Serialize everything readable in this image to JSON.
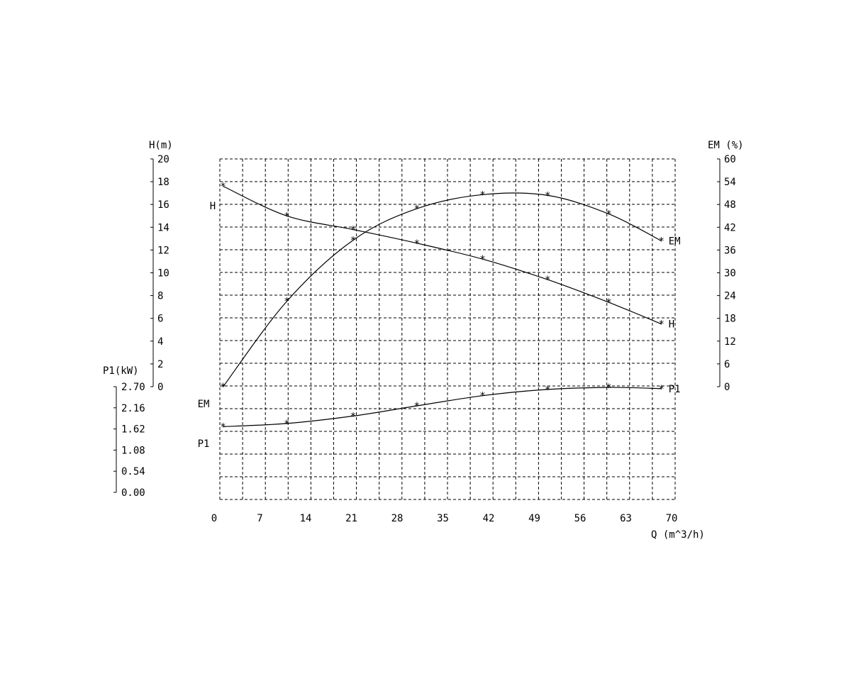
{
  "chart_data": {
    "type": "line",
    "x": {
      "label": "Q (m^3/h)",
      "range": [
        0,
        70
      ],
      "ticks": [
        "0",
        "7",
        "14",
        "21",
        "28",
        "35",
        "42",
        "49",
        "56",
        "63",
        "70"
      ]
    },
    "axes": {
      "H": {
        "label": "H(m)",
        "range": [
          0,
          20
        ],
        "ticks": [
          "0",
          "2",
          "4",
          "6",
          "8",
          "10",
          "12",
          "14",
          "16",
          "18",
          "20"
        ]
      },
      "EM": {
        "label": "EM (%)",
        "range": [
          0,
          60
        ],
        "ticks": [
          "0",
          "6",
          "12",
          "18",
          "24",
          "30",
          "36",
          "42",
          "48",
          "54",
          "60"
        ]
      },
      "P1": {
        "label": "P1(kW)",
        "range": [
          0,
          2.7
        ],
        "ticks": [
          "0.00",
          "0.54",
          "1.08",
          "1.62",
          "2.16",
          "2.70"
        ]
      }
    },
    "grid": true,
    "series": [
      {
        "name": "H",
        "axis": "H",
        "end_label": "H",
        "start_label": "H",
        "points": [
          [
            0.5,
            17.6
          ],
          [
            10.3,
            15.0
          ],
          [
            20.5,
            13.8
          ],
          [
            30.3,
            12.6
          ],
          [
            40.4,
            11.2
          ],
          [
            50.4,
            9.4
          ],
          [
            59.8,
            7.4
          ],
          [
            67.9,
            5.5
          ]
        ]
      },
      {
        "name": "EM",
        "axis": "EM",
        "end_label": "EM",
        "start_label": "EM",
        "points": [
          [
            0.5,
            0.0
          ],
          [
            10.3,
            22.5
          ],
          [
            20.5,
            38.6
          ],
          [
            30.3,
            46.9
          ],
          [
            40.4,
            50.6
          ],
          [
            50.4,
            50.4
          ],
          [
            59.8,
            45.5
          ],
          [
            67.9,
            38.4
          ]
        ]
      },
      {
        "name": "P1",
        "axis": "P1",
        "end_label": "P1",
        "start_label": "P1",
        "points": [
          [
            0.5,
            1.68
          ],
          [
            10.3,
            1.76
          ],
          [
            20.5,
            1.95
          ],
          [
            30.3,
            2.21
          ],
          [
            40.4,
            2.47
          ],
          [
            50.4,
            2.63
          ],
          [
            59.8,
            2.68
          ],
          [
            67.9,
            2.65
          ]
        ]
      }
    ]
  }
}
